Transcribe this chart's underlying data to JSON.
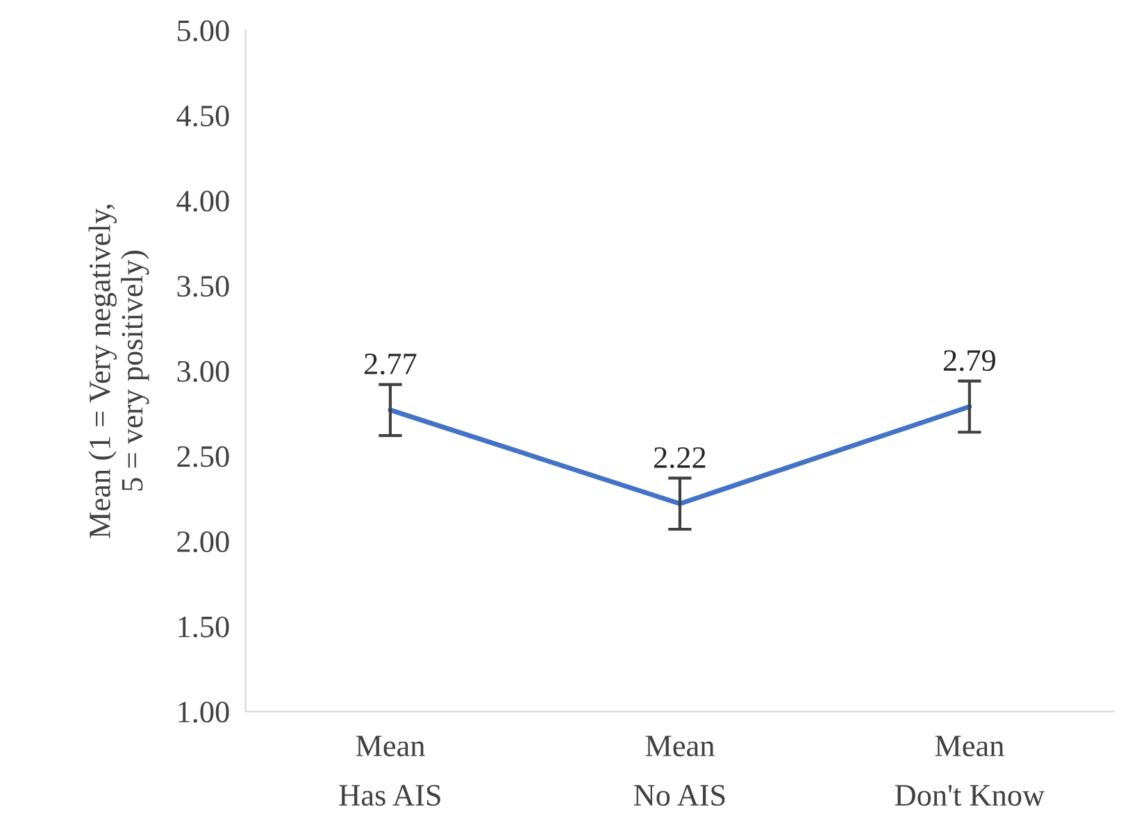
{
  "chart_data": {
    "type": "line",
    "ylabel": "Mean (1 = Very negatively,\n5 = very positively)",
    "categories": [
      "Mean\nHas AIS",
      "Mean\nNo AIS",
      "Mean\nDon't Know"
    ],
    "series": [
      {
        "color": "#4472c4",
        "values": [
          2.77,
          2.22,
          2.79
        ],
        "errors": [
          0.15,
          0.15,
          0.15
        ]
      }
    ],
    "data_labels": true,
    "ylim": [
      1,
      5
    ],
    "yticks": [
      {
        "value": 1,
        "label": "1.00"
      },
      {
        "value": 1.5,
        "label": "1.50"
      },
      {
        "value": 2,
        "label": "2.00"
      },
      {
        "value": 2.5,
        "label": "2.50"
      },
      {
        "value": 3,
        "label": "3.00"
      },
      {
        "value": 3.5,
        "label": "3.50"
      },
      {
        "value": 4,
        "label": "4.00"
      },
      {
        "value": 4.5,
        "label": "4.50"
      },
      {
        "value": 5,
        "label": "5.00"
      }
    ],
    "grid": false,
    "legend": false,
    "marker": "none",
    "line_style": "solid"
  }
}
